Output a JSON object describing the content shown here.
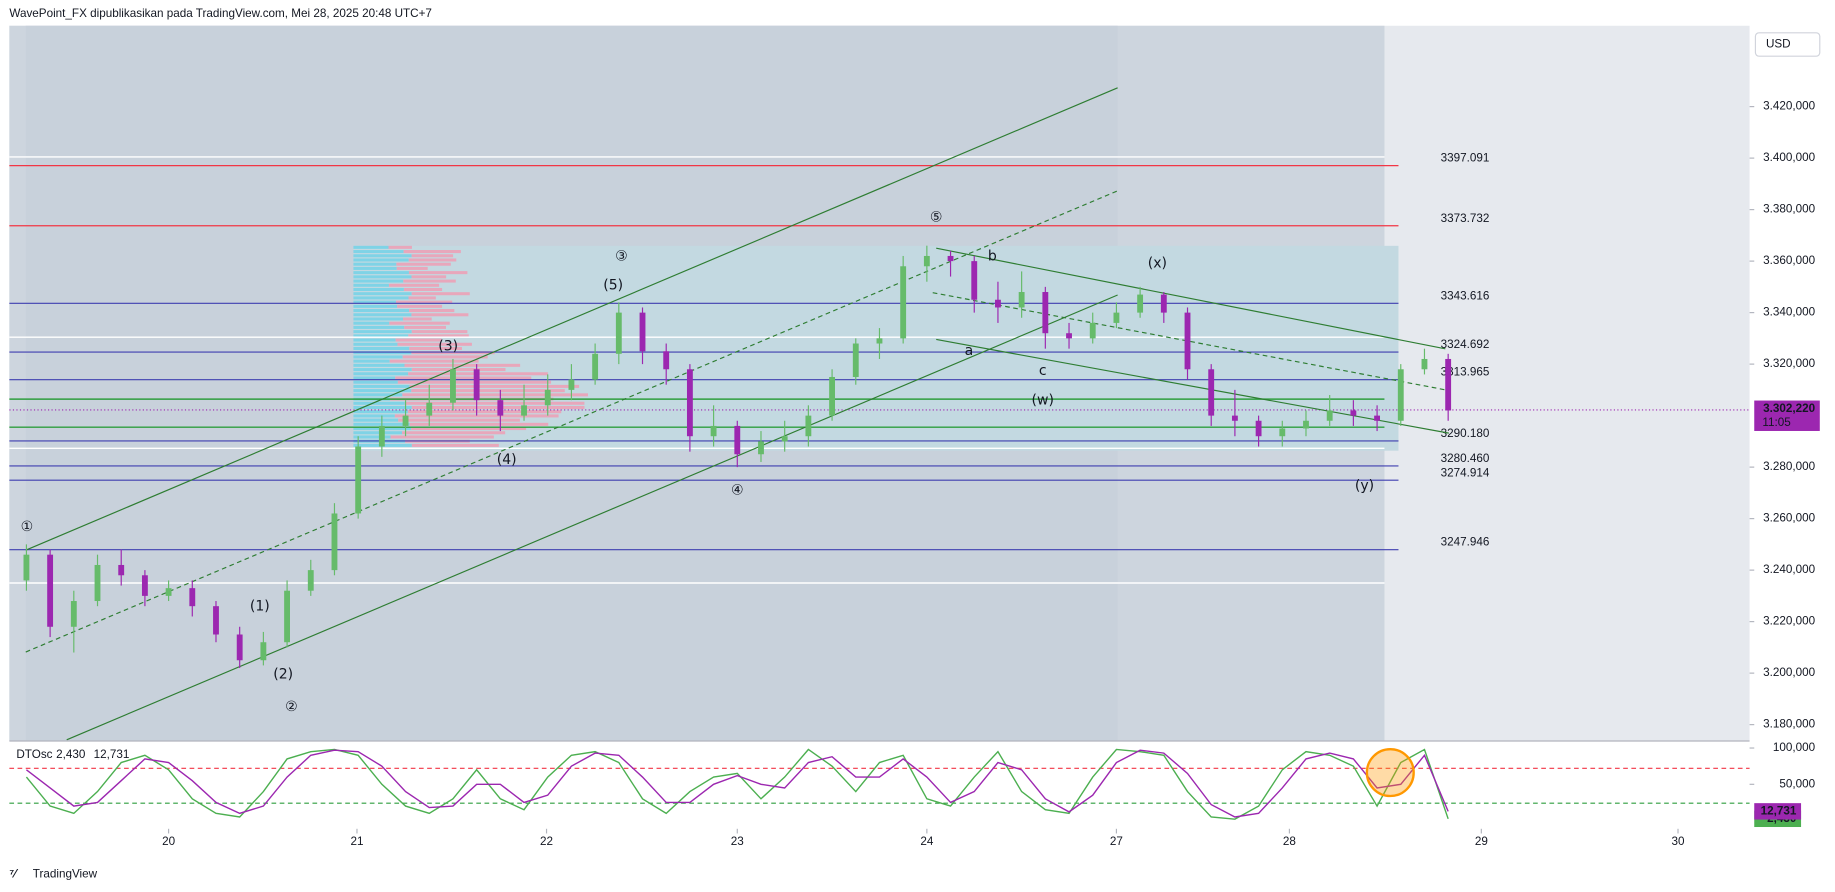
{
  "header": "WavePoint_FX dipublikasikan pada TradingView.com, Mei 28, 2025 20:48 UTC+7",
  "footer": "TradingView",
  "currency_button": "USD",
  "chart_data": [
    {
      "type": "candlestick",
      "up_color": "#66bb6a",
      "down_color": "#9c27b0",
      "x": [
        2,
        3,
        4,
        5,
        6,
        7,
        8,
        9,
        10,
        11,
        12,
        13,
        14,
        15,
        16,
        17,
        18,
        19,
        20,
        21,
        22,
        23,
        24,
        25,
        26,
        27,
        28,
        29,
        30,
        31,
        32,
        33,
        34,
        35,
        36,
        37,
        38,
        39,
        40,
        41,
        42,
        43,
        44,
        45,
        46,
        47,
        48,
        49,
        50,
        51,
        52,
        53,
        54,
        55,
        56,
        57,
        58,
        59,
        60,
        61,
        62
      ],
      "ohlc": [
        [
          3236,
          3250,
          3232,
          3246
        ],
        [
          3246,
          3248,
          3214,
          3218
        ],
        [
          3218,
          3232,
          3208,
          3228
        ],
        [
          3228,
          3246,
          3226,
          3242
        ],
        [
          3242,
          3248,
          3234,
          3238
        ],
        [
          3238,
          3240,
          3226,
          3230
        ],
        [
          3230,
          3236,
          3228,
          3233
        ],
        [
          3233,
          3236,
          3222,
          3226
        ],
        [
          3226,
          3228,
          3212,
          3215
        ],
        [
          3215,
          3218,
          3202,
          3205
        ],
        [
          3205,
          3216,
          3203,
          3212
        ],
        [
          3212,
          3236,
          3210,
          3232
        ],
        [
          3232,
          3244,
          3230,
          3240
        ],
        [
          3240,
          3266,
          3238,
          3262
        ],
        [
          3262,
          3292,
          3260,
          3288
        ],
        [
          3288,
          3300,
          3284,
          3296
        ],
        [
          3296,
          3306,
          3292,
          3300
        ],
        [
          3300,
          3312,
          3296,
          3305
        ],
        [
          3305,
          3322,
          3302,
          3318
        ],
        [
          3318,
          3320,
          3300,
          3306
        ],
        [
          3306,
          3310,
          3294,
          3300
        ],
        [
          3300,
          3312,
          3298,
          3304
        ],
        [
          3304,
          3316,
          3300,
          3310
        ],
        [
          3310,
          3320,
          3306,
          3314
        ],
        [
          3314,
          3328,
          3312,
          3324
        ],
        [
          3324,
          3344,
          3320,
          3340
        ],
        [
          3340,
          3342,
          3320,
          3325
        ],
        [
          3325,
          3328,
          3312,
          3318
        ],
        [
          3318,
          3320,
          3286,
          3292
        ],
        [
          3292,
          3304,
          3288,
          3296
        ],
        [
          3296,
          3298,
          3280,
          3285
        ],
        [
          3285,
          3294,
          3282,
          3290
        ],
        [
          3290,
          3298,
          3286,
          3292
        ],
        [
          3292,
          3304,
          3288,
          3300
        ],
        [
          3300,
          3318,
          3298,
          3315
        ],
        [
          3315,
          3330,
          3312,
          3328
        ],
        [
          3328,
          3334,
          3322,
          3330
        ],
        [
          3330,
          3362,
          3328,
          3358
        ],
        [
          3358,
          3366,
          3352,
          3362
        ],
        [
          3362,
          3364,
          3354,
          3360
        ],
        [
          3360,
          3362,
          3340,
          3345
        ],
        [
          3345,
          3352,
          3336,
          3342
        ],
        [
          3342,
          3356,
          3338,
          3348
        ],
        [
          3348,
          3350,
          3326,
          3332
        ],
        [
          3332,
          3336,
          3326,
          3330
        ],
        [
          3330,
          3340,
          3328,
          3336
        ],
        [
          3336,
          3344,
          3334,
          3340
        ],
        [
          3340,
          3350,
          3338,
          3347
        ],
        [
          3347,
          3348,
          3336,
          3340
        ],
        [
          3340,
          3342,
          3314,
          3318
        ],
        [
          3318,
          3320,
          3296,
          3300
        ],
        [
          3300,
          3310,
          3292,
          3298
        ],
        [
          3298,
          3300,
          3288,
          3292
        ],
        [
          3292,
          3298,
          3288,
          3295
        ],
        [
          3295,
          3302,
          3292,
          3298
        ],
        [
          3298,
          3308,
          3296,
          3302
        ],
        [
          3302,
          3306,
          3296,
          3300
        ],
        [
          3300,
          3304,
          3294,
          3298
        ],
        [
          3298,
          3320,
          3296,
          3318
        ],
        [
          3318,
          3326,
          3316,
          3322
        ],
        [
          3322,
          3324,
          3298,
          3302
        ]
      ],
      "xlim": [
        1.28,
        74.72
      ],
      "xticks": [
        {
          "value": 8,
          "label": "20"
        },
        {
          "value": 15.95,
          "label": "21"
        },
        {
          "value": 23.95,
          "label": "22"
        },
        {
          "value": 32,
          "label": "23"
        },
        {
          "value": 40,
          "label": "24"
        },
        {
          "value": 48,
          "label": "27"
        },
        {
          "value": 55.3,
          "label": "28"
        },
        {
          "value": 63.4,
          "label": "29"
        },
        {
          "value": 71.7,
          "label": "30"
        }
      ],
      "ylim": [
        3174.1,
        3451.4
      ],
      "yticks": [
        {
          "value": 3420,
          "label": "3.420,000"
        },
        {
          "value": 3400,
          "label": "3.400,000"
        },
        {
          "value": 3380,
          "label": "3.380,000"
        },
        {
          "value": 3360,
          "label": "3.360,000"
        },
        {
          "value": 3340,
          "label": "3.340,000"
        },
        {
          "value": 3320,
          "label": "3.320,000"
        },
        {
          "value": 3280,
          "label": "3.280,000"
        },
        {
          "value": 3260,
          "label": "3.260,000"
        },
        {
          "value": 3240,
          "label": "3.240,000"
        },
        {
          "value": 3220,
          "label": "3.220,000"
        },
        {
          "value": 3200,
          "label": "3.200,000"
        },
        {
          "value": 3180,
          "label": "3.180,000"
        }
      ],
      "levels": [
        {
          "value": 3397.091,
          "label": "3397.091",
          "color": "#f23645",
          "line_color": "#f23645"
        },
        {
          "value": 3373.732,
          "label": "3373.732",
          "color": "#f23645",
          "line_color": "#f23645"
        },
        {
          "value": 3343.616,
          "label": "3343.616",
          "color": "#131722",
          "line_color": "#3f3fb0"
        },
        {
          "value": 3324.692,
          "label": "3324.692",
          "color": "#7e57c2",
          "line_color": "#3f3fb0"
        },
        {
          "value": 3313.965,
          "label": "3313.965",
          "color": "#7e57c2",
          "line_color": "#3f3fb0"
        },
        {
          "value": 3290.18,
          "label": "3290.180",
          "color": "#7e57c2",
          "line_color": "#3f3fb0"
        },
        {
          "value": 3280.46,
          "label": "3280.460",
          "color": "#7e57c2",
          "line_color": "#3f3fb0"
        },
        {
          "value": 3274.914,
          "label": "3274.914",
          "color": "#7e57c2",
          "line_color": "#3f3fb0"
        },
        {
          "value": 3247.946,
          "label": "3247.946",
          "color": "#131722",
          "line_color": "#3f3fb0"
        }
      ],
      "lines": [
        {
          "value": 3400.45,
          "color": "#ffffff"
        },
        {
          "value": 3330.45,
          "color": "#ffffff"
        },
        {
          "value": 3287.3,
          "color": "#ffffff"
        },
        {
          "value": 3235,
          "color": "#ffffff"
        },
        {
          "value": 3306.4,
          "color": "#2e9e3e"
        },
        {
          "value": 3295.5,
          "color": "#2e9e3e"
        }
      ],
      "last_price": {
        "value": 3302.22,
        "label": "3.302,220",
        "countdown": "11:05",
        "color": "#9c27b0"
      },
      "annotations": [
        {
          "text": "①",
          "color": "#5b3fc4"
        },
        {
          "text": "②",
          "color": "#5b3fc4"
        },
        {
          "text": "③",
          "color": "#5b3fc4"
        },
        {
          "text": "④",
          "color": "#5b3fc4"
        },
        {
          "text": "⑤",
          "color": "#5b3fc4"
        },
        {
          "text": "(1)",
          "color": "#f23645"
        },
        {
          "text": "(2)",
          "color": "#f23645"
        },
        {
          "text": "(3)",
          "color": "#f23645"
        },
        {
          "text": "(4)",
          "color": "#f23645"
        },
        {
          "text": "(5)",
          "color": "#f23645"
        },
        {
          "text": "(w)",
          "color": "#7e57c2"
        },
        {
          "text": "(x)",
          "color": "#7e57c2"
        },
        {
          "text": "(y)",
          "color": "#7e57c2"
        },
        {
          "text": "a",
          "color": "#7e57c2"
        },
        {
          "text": "b",
          "color": "#7e57c2"
        },
        {
          "text": "c",
          "color": "#7e57c2"
        }
      ]
    },
    {
      "type": "line",
      "title": "DTOsc",
      "x": [
        2,
        3,
        4,
        5,
        6,
        7,
        8,
        9,
        10,
        11,
        12,
        13,
        14,
        15,
        16,
        17,
        18,
        19,
        20,
        21,
        22,
        23,
        24,
        25,
        26,
        27,
        28,
        29,
        30,
        31,
        32,
        33,
        34,
        35,
        36,
        37,
        38,
        39,
        40,
        41,
        42,
        43,
        44,
        45,
        46,
        47,
        48,
        49,
        50,
        51,
        52,
        53,
        54,
        55,
        56,
        57,
        58,
        59,
        60,
        61,
        62
      ],
      "xlim": [
        1.28,
        74.72
      ],
      "ylim": [
        -11.3,
        109.7
      ],
      "yticks": [
        {
          "value": 100,
          "label": "100,000"
        },
        {
          "value": 50,
          "label": "50,000"
        }
      ],
      "levels": [
        {
          "value": 72,
          "color": "#f23645"
        },
        {
          "value": 24,
          "color": "#2e9e3e"
        }
      ],
      "series": [
        {
          "color": "#4caf50",
          "last_label": "2,430",
          "values": [
            60,
            20,
            10,
            40,
            80,
            90,
            70,
            30,
            10,
            5,
            40,
            85,
            95,
            98,
            90,
            50,
            20,
            10,
            30,
            70,
            30,
            15,
            60,
            90,
            95,
            80,
            30,
            10,
            40,
            60,
            65,
            30,
            60,
            98,
            75,
            40,
            80,
            90,
            30,
            20,
            60,
            95,
            40,
            15,
            10,
            60,
            98,
            95,
            90,
            40,
            5,
            2,
            20,
            70,
            95,
            90,
            75,
            20,
            80,
            98,
            2.43
          ]
        },
        {
          "color": "#9c27b0",
          "last_label": "12,731",
          "values": [
            70,
            45,
            20,
            25,
            55,
            85,
            80,
            55,
            25,
            10,
            20,
            60,
            90,
            97,
            95,
            75,
            40,
            18,
            20,
            50,
            50,
            25,
            35,
            75,
            93,
            90,
            60,
            25,
            25,
            50,
            62,
            50,
            45,
            80,
            88,
            60,
            60,
            85,
            60,
            25,
            40,
            80,
            70,
            30,
            12,
            35,
            80,
            97,
            93,
            65,
            22,
            5,
            10,
            45,
            85,
            93,
            85,
            45,
            50,
            90,
            12.731
          ]
        }
      ]
    }
  ]
}
